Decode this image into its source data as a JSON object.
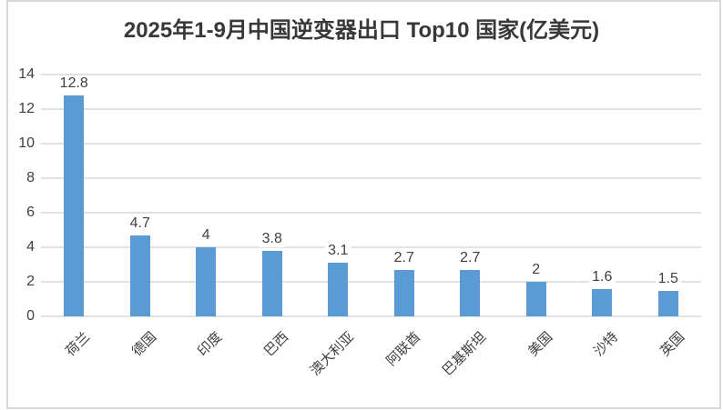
{
  "chart_data": {
    "type": "bar",
    "title": "2025年1-9月中国逆变器出口 Top10 国家(亿美元)",
    "categories": [
      "荷兰",
      "德国",
      "印度",
      "巴西",
      "澳大利亚",
      "阿联酋",
      "巴基斯坦",
      "美国",
      "沙特",
      "英国"
    ],
    "values": [
      12.8,
      4.7,
      4,
      3.8,
      3.1,
      2.7,
      2.7,
      2,
      1.6,
      1.5
    ],
    "data_labels": [
      "12.8",
      "4.7",
      "4",
      "3.8",
      "3.1",
      "2.7",
      "2.7",
      "2",
      "1.6",
      "1.5"
    ],
    "xlabel": "",
    "ylabel": "",
    "ylim": [
      0,
      14
    ],
    "yticks": [
      0,
      2,
      4,
      6,
      8,
      10,
      12,
      14
    ],
    "grid": true,
    "legend_position": "none",
    "x_label_rotation_deg": -45,
    "colors": {
      "bar": "#5b9bd5",
      "gridline": "#e2e2e2",
      "axis_text": "#404040",
      "title_text": "#383838",
      "frame_border": "#d9d9d9",
      "background": "#ffffff"
    }
  }
}
